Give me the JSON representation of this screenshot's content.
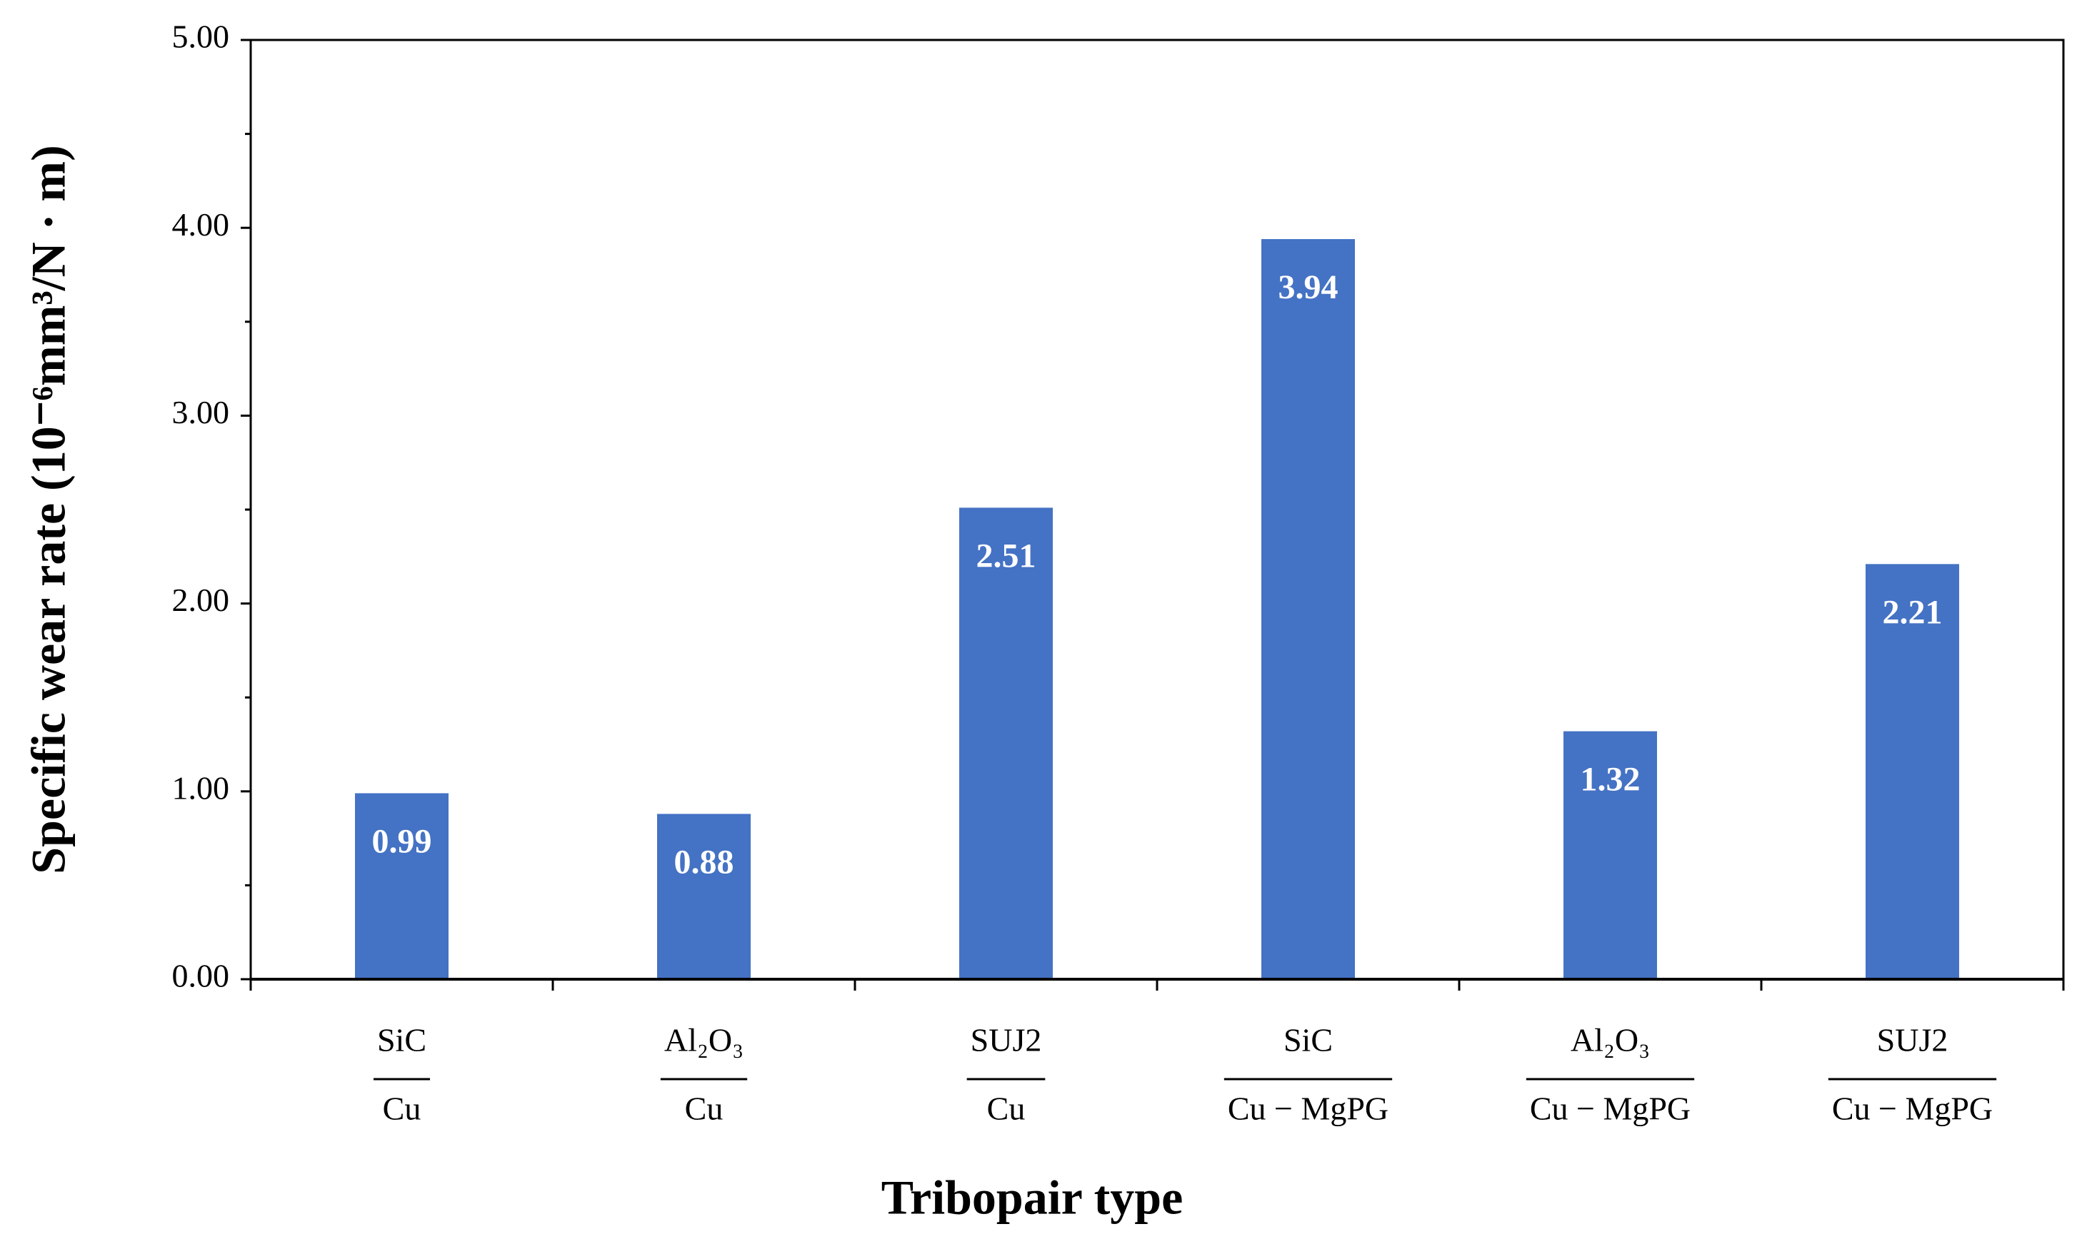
{
  "chart_data": {
    "type": "bar",
    "xlabel": "Tribopair type",
    "ylabel": "Specific wear rate (10⁻⁶mm³/N · m)",
    "categories": [
      {
        "numerator": "SiC",
        "denominator": "Cu"
      },
      {
        "numerator": "Al₂O₃",
        "denominator": "Cu"
      },
      {
        "numerator": "SUJ2",
        "denominator": "Cu"
      },
      {
        "numerator": "SiC",
        "denominator": "Cu − MgPG"
      },
      {
        "numerator": "Al₂O₃",
        "denominator": "Cu − MgPG"
      },
      {
        "numerator": "SUJ2",
        "denominator": "Cu − MgPG"
      }
    ],
    "values": [
      0.99,
      0.88,
      2.51,
      3.94,
      1.32,
      2.21
    ],
    "color": "#4472c4",
    "ylim": [
      0,
      5
    ],
    "yticks": [
      {
        "value": 0,
        "label": "0.00"
      },
      {
        "value": 1,
        "label": "1.00"
      },
      {
        "value": 2,
        "label": "2.00"
      },
      {
        "value": 3,
        "label": "3.00"
      },
      {
        "value": 4,
        "label": "4.00"
      },
      {
        "value": 5,
        "label": "5.00"
      }
    ],
    "minor_yticks": [
      0.5,
      1.5,
      2.5,
      3.5,
      4.5
    ],
    "grid": false
  }
}
